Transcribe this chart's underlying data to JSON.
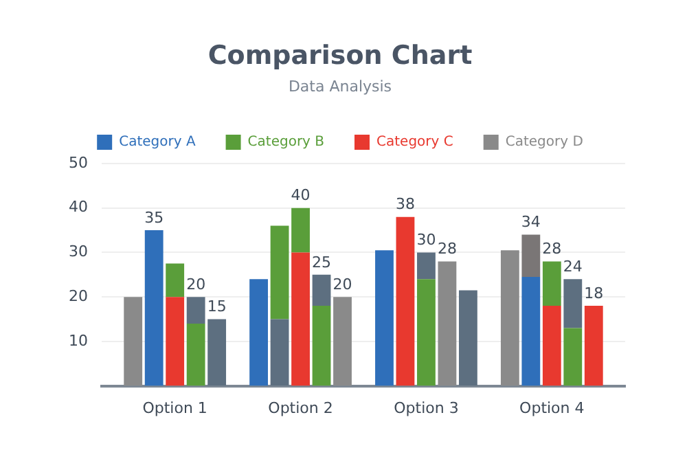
{
  "chart_data": {
    "type": "bar",
    "title": "Comparison Chart",
    "subtitle": "Data Analysis",
    "stacked": true,
    "grid": "y",
    "legend": "top",
    "ylim": [
      0,
      50
    ],
    "yticks": [
      10,
      20,
      30,
      40,
      50
    ],
    "categories": [
      null,
      null,
      null,
      "Option 1",
      null,
      null,
      null,
      null,
      null,
      "Option 2",
      null,
      null,
      null,
      null,
      null,
      "Option 3",
      null,
      null,
      null,
      null,
      null,
      "Option 4",
      null,
      null,
      null
    ],
    "totals": [
      null,
      null,
      "35",
      null,
      "20",
      "15",
      null,
      null,
      null,
      "40",
      "25",
      "20",
      null,
      null,
      "38",
      "30",
      "28",
      null,
      null,
      null,
      "34",
      "28",
      "24",
      "18",
      null
    ],
    "series": [
      {
        "name": "Category A",
        "color": "#2f6fba",
        "values": [
          null,
          null,
          35,
          null,
          null,
          null,
          null,
          24,
          null,
          null,
          null,
          null,
          null,
          30.5,
          null,
          null,
          null,
          null,
          null,
          null,
          24.5,
          null,
          null,
          null,
          null
        ]
      },
      {
        "name": "Category B",
        "color": "#5a9e3a",
        "values": [
          null,
          null,
          null,
          null,
          14,
          null,
          null,
          null,
          null,
          null,
          18,
          null,
          null,
          null,
          null,
          24,
          null,
          null,
          null,
          null,
          null,
          null,
          13,
          null,
          null
        ]
      },
      {
        "name": "Category C",
        "color": "#e8392f",
        "values": [
          null,
          null,
          null,
          20,
          null,
          null,
          null,
          null,
          null,
          30,
          null,
          null,
          null,
          null,
          38,
          null,
          null,
          null,
          null,
          null,
          null,
          18,
          null,
          18,
          null
        ]
      },
      {
        "name": "Category D",
        "color": "#8a8a8a",
        "values": [
          null,
          20,
          null,
          null,
          null,
          null,
          null,
          null,
          null,
          null,
          null,
          20,
          null,
          null,
          null,
          null,
          28,
          null,
          null,
          30.5,
          null,
          null,
          null,
          null,
          null
        ]
      },
      {
        "color": "#5d6f80",
        "values": [
          null,
          null,
          null,
          null,
          null,
          15,
          null,
          null,
          15,
          null,
          null,
          null,
          null,
          null,
          null,
          null,
          null,
          21.5,
          null,
          null,
          null,
          null,
          null,
          null,
          null
        ]
      },
      {
        "color": "#5a9e3a",
        "values": [
          null,
          null,
          null,
          7.5,
          null,
          null,
          null,
          null,
          21,
          10,
          null,
          null,
          null,
          null,
          null,
          null,
          null,
          null,
          null,
          null,
          null,
          10,
          null,
          null,
          null
        ]
      },
      {
        "color": "#5d6f80",
        "values": [
          null,
          null,
          null,
          null,
          6,
          null,
          null,
          null,
          null,
          null,
          7,
          null,
          null,
          null,
          null,
          6,
          null,
          null,
          null,
          null,
          null,
          null,
          11,
          null,
          null
        ]
      },
      {
        "color": "#7a7676",
        "values": [
          null,
          null,
          null,
          null,
          null,
          null,
          null,
          null,
          null,
          null,
          null,
          null,
          null,
          null,
          null,
          null,
          null,
          null,
          null,
          null,
          9.5,
          null,
          null,
          null,
          null
        ]
      }
    ]
  }
}
